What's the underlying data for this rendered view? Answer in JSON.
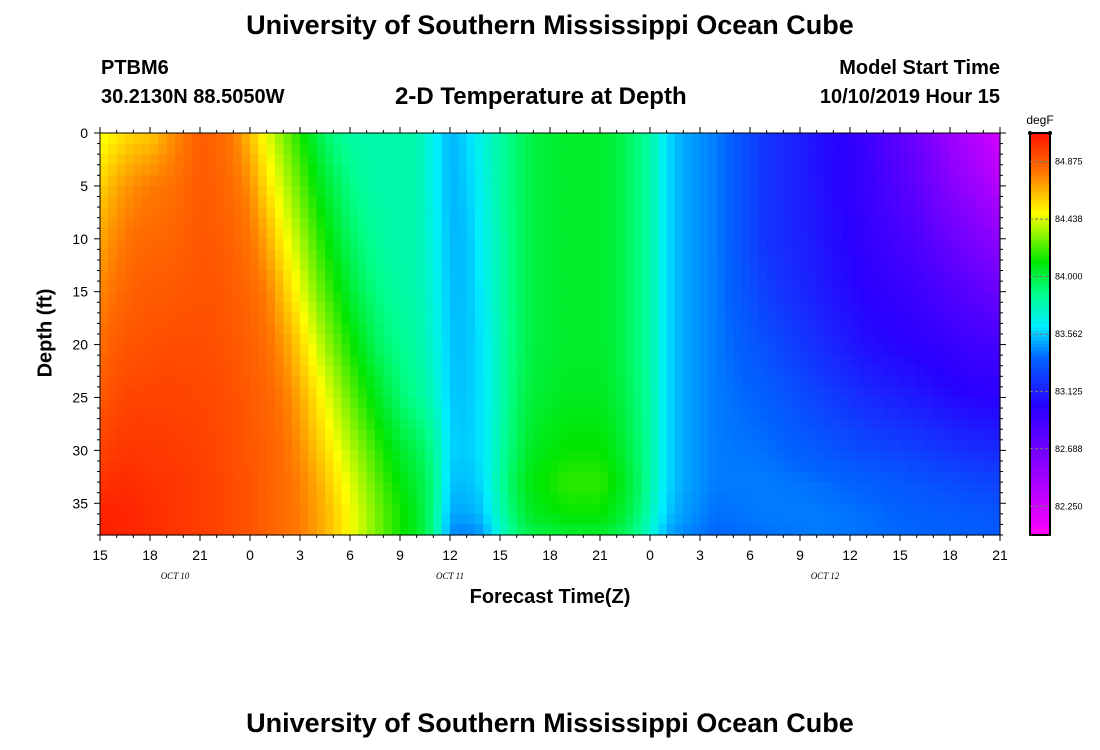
{
  "header": {
    "title": "University of Southern Mississippi Ocean Cube",
    "footer_title": "University of Southern Mississippi Ocean Cube",
    "station_id": "PTBM6",
    "station_coords": "30.2130N 88.5050W",
    "model_start_label": "Model Start Time",
    "model_start_value": "10/10/2019 Hour 15"
  },
  "chart_data": {
    "type": "heatmap",
    "title": "2-D Temperature at Depth",
    "xlabel": "Forecast Time(Z)",
    "ylabel": "Depth (ft)",
    "ylim": [
      0,
      38
    ],
    "y_reversed": true,
    "y_ticks": [
      0,
      5,
      10,
      15,
      20,
      25,
      30,
      35
    ],
    "x_hours_range": [
      0,
      54
    ],
    "x_tick_labels": [
      "15",
      "18",
      "21",
      "0",
      "3",
      "6",
      "9",
      "12",
      "15",
      "18",
      "21",
      "0",
      "3",
      "6",
      "9",
      "12",
      "15",
      "18",
      "21"
    ],
    "date_labels": [
      {
        "label": "OCT 10",
        "hour": 4.5
      },
      {
        "label": "OCT 11",
        "hour": 21
      },
      {
        "label": "OCT 12",
        "hour": 43.5
      }
    ],
    "colorbar": {
      "unit": "degF",
      "min": 82.031,
      "max": 85.094,
      "tick_values": [
        84.875,
        84.438,
        84.0,
        83.562,
        83.125,
        82.688,
        82.25
      ],
      "tick_labels": [
        "84.875",
        "84.438",
        "84.000",
        "83.562",
        "83.125",
        "82.688",
        "82.250"
      ]
    },
    "depth_profiles": [
      0,
      5,
      10,
      15,
      20,
      25,
      30,
      33,
      36,
      38
    ],
    "temperature_profiles": [
      {
        "hour": 0,
        "temps": [
          84.45,
          84.58,
          84.68,
          84.75,
          84.82,
          84.88,
          84.95,
          85.0,
          85.05,
          85.06
        ]
      },
      {
        "hour": 1,
        "temps": [
          84.52,
          84.68,
          84.76,
          84.82,
          84.88,
          84.93,
          84.98,
          85.02,
          85.05,
          85.05
        ]
      },
      {
        "hour": 2,
        "temps": [
          84.58,
          84.74,
          84.82,
          84.86,
          84.9,
          84.95,
          84.99,
          85.02,
          85.04,
          85.04
        ]
      },
      {
        "hour": 3,
        "temps": [
          84.6,
          84.78,
          84.84,
          84.88,
          84.91,
          84.95,
          84.98,
          85.0,
          85.02,
          85.02
        ]
      },
      {
        "hour": 4,
        "temps": [
          84.7,
          84.8,
          84.84,
          84.88,
          84.92,
          84.95,
          84.98,
          85.0,
          85.0,
          85.0
        ]
      },
      {
        "hour": 6,
        "temps": [
          84.87,
          84.88,
          84.89,
          84.9,
          84.92,
          84.94,
          84.96,
          84.97,
          84.97,
          84.97
        ]
      },
      {
        "hour": 7,
        "temps": [
          84.84,
          84.86,
          84.88,
          84.9,
          84.91,
          84.93,
          84.94,
          84.95,
          84.95,
          84.95
        ]
      },
      {
        "hour": 8,
        "temps": [
          84.78,
          84.82,
          84.85,
          84.87,
          84.89,
          84.91,
          84.92,
          84.92,
          84.92,
          84.92
        ]
      },
      {
        "hour": 9,
        "temps": [
          84.62,
          84.74,
          84.8,
          84.84,
          84.86,
          84.88,
          84.89,
          84.9,
          84.9,
          84.9
        ]
      },
      {
        "hour": 10,
        "temps": [
          84.45,
          84.55,
          84.68,
          84.78,
          84.82,
          84.85,
          84.86,
          84.86,
          84.86,
          84.86
        ]
      },
      {
        "hour": 11,
        "temps": [
          84.3,
          84.4,
          84.5,
          84.62,
          84.72,
          84.79,
          84.82,
          84.82,
          84.82,
          84.82
        ]
      },
      {
        "hour": 12,
        "temps": [
          84.15,
          84.25,
          84.36,
          84.46,
          84.58,
          84.68,
          84.74,
          84.77,
          84.78,
          84.78
        ]
      },
      {
        "hour": 13,
        "temps": [
          84.0,
          84.1,
          84.2,
          84.3,
          84.42,
          84.54,
          84.62,
          84.68,
          84.7,
          84.7
        ]
      },
      {
        "hour": 14,
        "temps": [
          83.88,
          83.98,
          84.06,
          84.16,
          84.28,
          84.4,
          84.5,
          84.56,
          84.6,
          84.6
        ]
      },
      {
        "hour": 15,
        "temps": [
          83.82,
          83.88,
          83.95,
          84.03,
          84.14,
          84.26,
          84.38,
          84.44,
          84.48,
          84.48
        ]
      },
      {
        "hour": 16,
        "temps": [
          83.8,
          83.82,
          83.87,
          83.93,
          84.02,
          84.14,
          84.26,
          84.32,
          84.36,
          84.36
        ]
      },
      {
        "hour": 17,
        "temps": [
          83.8,
          83.8,
          83.82,
          83.86,
          83.92,
          84.02,
          84.14,
          84.2,
          84.24,
          84.24
        ]
      },
      {
        "hour": 18,
        "temps": [
          83.8,
          83.8,
          83.8,
          83.82,
          83.86,
          83.92,
          84.04,
          84.1,
          84.14,
          84.14
        ]
      },
      {
        "hour": 19,
        "temps": [
          83.8,
          83.8,
          83.8,
          83.8,
          83.82,
          83.86,
          83.98,
          84.02,
          84.06,
          84.06
        ]
      },
      {
        "hour": 20,
        "temps": [
          83.66,
          83.66,
          83.68,
          83.7,
          83.72,
          83.76,
          83.86,
          83.9,
          83.88,
          83.88
        ]
      },
      {
        "hour": 21,
        "temps": [
          83.52,
          83.52,
          83.53,
          83.54,
          83.55,
          83.56,
          83.58,
          83.55,
          83.5,
          83.45
        ]
      },
      {
        "hour": 22,
        "temps": [
          83.58,
          83.56,
          83.54,
          83.54,
          83.54,
          83.55,
          83.56,
          83.54,
          83.5,
          83.42
        ]
      },
      {
        "hour": 23,
        "temps": [
          83.7,
          83.68,
          83.66,
          83.64,
          83.62,
          83.62,
          83.62,
          83.6,
          83.55,
          83.48
        ]
      },
      {
        "hour": 24,
        "temps": [
          83.82,
          83.82,
          83.8,
          83.8,
          83.78,
          83.78,
          83.8,
          83.82,
          83.78,
          83.72
        ]
      },
      {
        "hour": 25,
        "temps": [
          83.92,
          83.92,
          83.92,
          83.92,
          83.92,
          83.94,
          83.96,
          84.0,
          83.96,
          83.9
        ]
      },
      {
        "hour": 26,
        "temps": [
          84.0,
          84.0,
          84.0,
          84.0,
          84.0,
          84.02,
          84.06,
          84.1,
          84.06,
          83.98
        ]
      },
      {
        "hour": 28,
        "temps": [
          84.04,
          84.04,
          84.04,
          84.04,
          84.04,
          84.06,
          84.12,
          84.18,
          84.12,
          84.02
        ]
      },
      {
        "hour": 30,
        "temps": [
          84.04,
          84.04,
          84.04,
          84.04,
          84.04,
          84.06,
          84.12,
          84.18,
          84.12,
          84.02
        ]
      },
      {
        "hour": 31,
        "temps": [
          84.0,
          84.0,
          84.0,
          84.0,
          84.0,
          84.02,
          84.06,
          84.1,
          84.06,
          83.98
        ]
      },
      {
        "hour": 32,
        "temps": [
          83.92,
          83.92,
          83.92,
          83.92,
          83.92,
          83.94,
          83.96,
          84.0,
          83.96,
          83.9
        ]
      },
      {
        "hour": 33,
        "temps": [
          83.82,
          83.82,
          83.82,
          83.82,
          83.82,
          83.82,
          83.82,
          83.82,
          83.78,
          83.72
        ]
      },
      {
        "hour": 34,
        "temps": [
          83.6,
          83.6,
          83.6,
          83.6,
          83.6,
          83.6,
          83.6,
          83.6,
          83.56,
          83.5
        ]
      },
      {
        "hour": 35,
        "temps": [
          83.5,
          83.5,
          83.5,
          83.5,
          83.5,
          83.5,
          83.5,
          83.5,
          83.48,
          83.44
        ]
      },
      {
        "hour": 37,
        "temps": [
          83.42,
          83.42,
          83.42,
          83.42,
          83.42,
          83.42,
          83.42,
          83.42,
          83.4,
          83.38
        ]
      },
      {
        "hour": 40,
        "temps": [
          83.2,
          83.2,
          83.2,
          83.24,
          83.3,
          83.36,
          83.4,
          83.42,
          83.42,
          83.4
        ]
      },
      {
        "hour": 43,
        "temps": [
          83.08,
          83.08,
          83.1,
          83.12,
          83.18,
          83.26,
          83.34,
          83.4,
          83.42,
          83.42
        ]
      },
      {
        "hour": 46,
        "temps": [
          82.92,
          82.94,
          82.96,
          83.0,
          83.06,
          83.16,
          83.28,
          83.36,
          83.4,
          83.4
        ]
      },
      {
        "hour": 49,
        "temps": [
          82.7,
          82.76,
          82.84,
          82.92,
          83.0,
          83.1,
          83.24,
          83.32,
          83.36,
          83.38
        ]
      },
      {
        "hour": 52,
        "temps": [
          82.4,
          82.52,
          82.66,
          82.8,
          82.92,
          83.02,
          83.18,
          83.28,
          83.34,
          83.36
        ]
      },
      {
        "hour": 54,
        "temps": [
          82.25,
          82.38,
          82.56,
          82.72,
          82.88,
          83.0,
          83.16,
          83.26,
          83.32,
          83.34
        ]
      }
    ]
  }
}
